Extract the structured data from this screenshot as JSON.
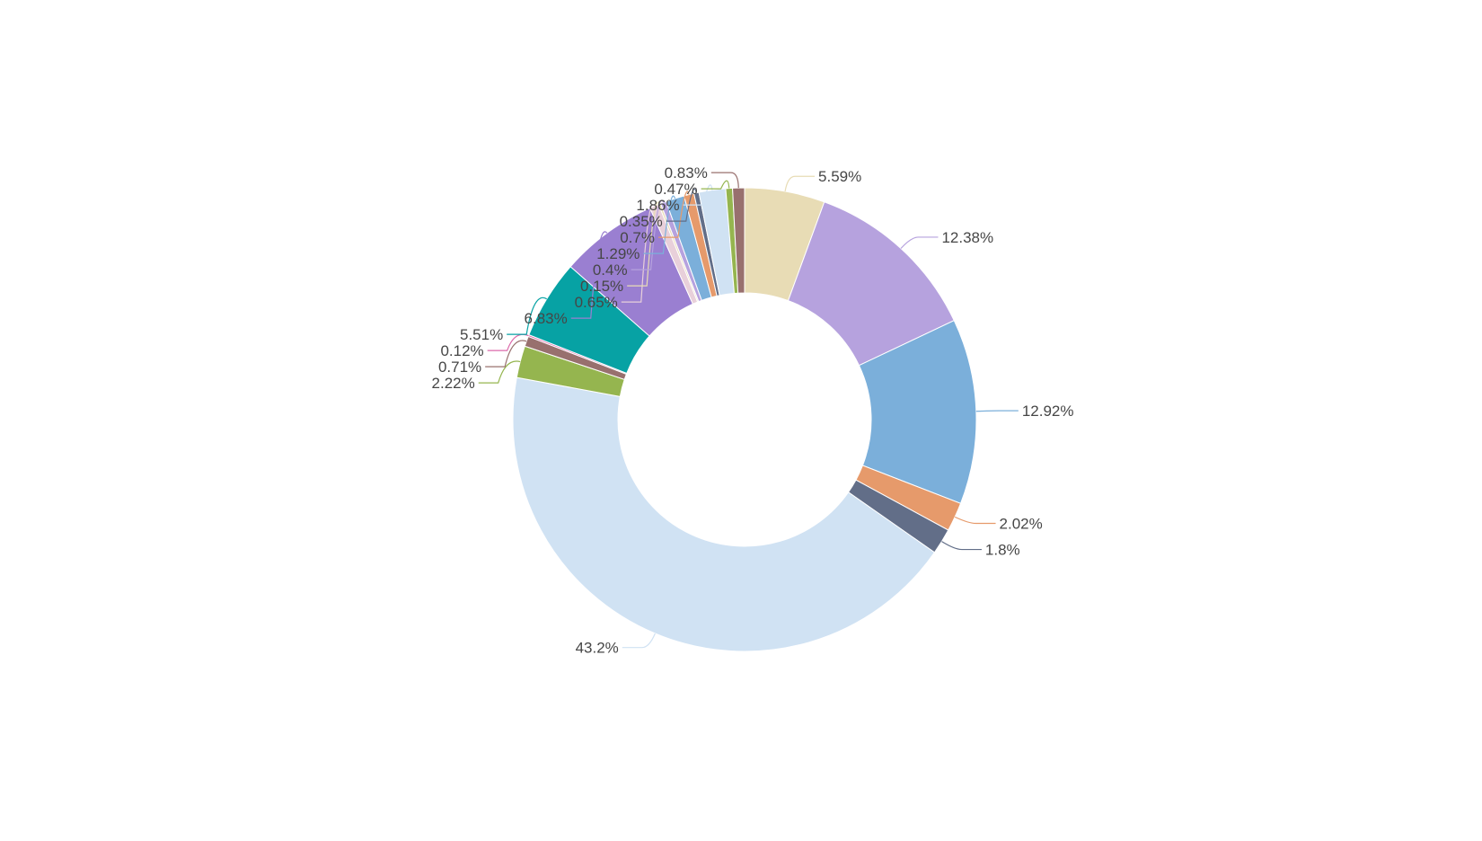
{
  "chart_data": {
    "type": "pie",
    "variant": "donut",
    "title": "",
    "start_angle_deg": 90,
    "direction": "clockwise",
    "slices": [
      {
        "value": 5.59,
        "label": "5.59%",
        "color": "#E8DCB5"
      },
      {
        "value": 12.38,
        "label": "12.38%",
        "color": "#B6A2DE"
      },
      {
        "value": 12.92,
        "label": "12.92%",
        "color": "#7BAFDA"
      },
      {
        "value": 2.02,
        "label": "2.02%",
        "color": "#E69A6B"
      },
      {
        "value": 1.8,
        "label": "1.8%",
        "color": "#626E88"
      },
      {
        "value": 43.2,
        "label": "43.2%",
        "color": "#D0E2F3"
      },
      {
        "value": 2.22,
        "label": "2.22%",
        "color": "#95B54F"
      },
      {
        "value": 0.71,
        "label": "0.71%",
        "color": "#98706E"
      },
      {
        "value": 0.12,
        "label": "0.12%",
        "color": "#DC69AA"
      },
      {
        "value": 5.51,
        "label": "5.51%",
        "color": "#07A2A4"
      },
      {
        "value": 6.83,
        "label": "6.83%",
        "color": "#9A7FD1"
      },
      {
        "value": 0.65,
        "label": "0.65%",
        "color": "#E8D0DA"
      },
      {
        "value": 0.15,
        "label": "0.15%",
        "color": "#E8DCB5"
      },
      {
        "value": 0.4,
        "label": "0.4%",
        "color": "#B6A2DE"
      },
      {
        "value": 1.29,
        "label": "1.29%",
        "color": "#7BAFDA"
      },
      {
        "value": 0.7,
        "label": "0.7%",
        "color": "#E69A6B"
      },
      {
        "value": 0.35,
        "label": "0.35%",
        "color": "#626E88"
      },
      {
        "value": 1.86,
        "label": "1.86%",
        "color": "#D0E2F3"
      },
      {
        "value": 0.47,
        "label": "0.47%",
        "color": "#95B54F"
      },
      {
        "value": 0.83,
        "label": "0.83%",
        "color": "#98706E"
      }
    ]
  }
}
